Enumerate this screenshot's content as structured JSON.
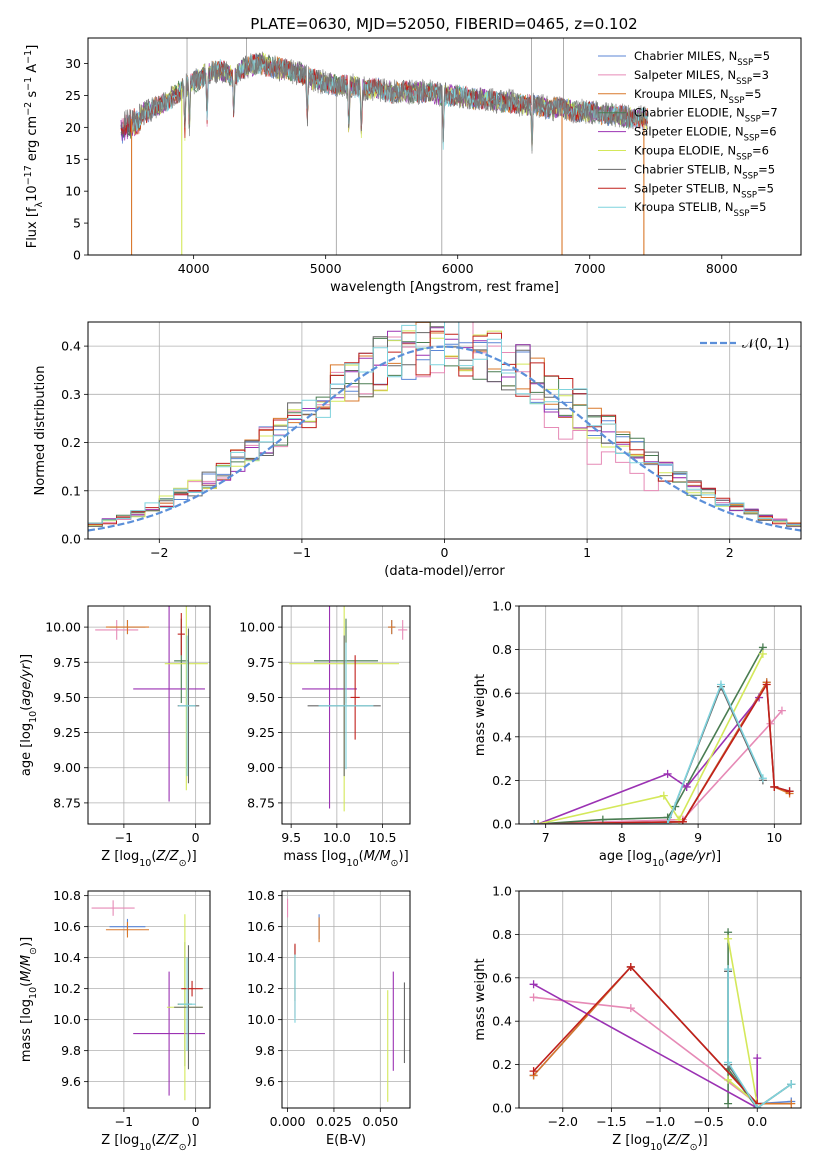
{
  "figure_title": "PLATE=0630, MJD=52050, FIBERID=0465, z=0.102",
  "colors": {
    "Chabrier MILES": "#5b86d6",
    "Salpeter MILES": "#e68ab6",
    "Kroupa MILES": "#d9782b",
    "Chabrier ELODIE": "#4a7d52",
    "Salpeter ELODIE": "#9b32b3",
    "Kroupa ELODIE": "#d4e85a",
    "Chabrier STELIB": "#666666",
    "Salpeter STELIB": "#c0201c",
    "Kroupa STELIB": "#7fd3dd"
  },
  "chart_data": [
    {
      "id": "spectrum",
      "type": "line",
      "title": "PLATE=0630, MJD=52050, FIBERID=0465, z=0.102",
      "xlabel": "wavelength [Angstrom, rest frame]",
      "ylabel": "Flux [f_λ 10^-17 erg cm^-2 s^-1 A^-1]",
      "xlim": [
        3200,
        8600
      ],
      "ylim": [
        0,
        34
      ],
      "xticks": [
        "4000",
        "5000",
        "6000",
        "7000",
        "8000"
      ],
      "yticks": [
        "0",
        "5",
        "10",
        "15",
        "20",
        "25",
        "30"
      ],
      "grid": false,
      "legend_position": "top-right",
      "legend": [
        "Chabrier MILES, N_SSP=5",
        "Salpeter MILES, N_SSP=3",
        "Kroupa MILES, N_SSP=5",
        "Chabrier ELODIE, N_SSP=7",
        "Salpeter ELODIE, N_SSP=6",
        "Kroupa ELODIE, N_SSP=6",
        "Chabrier STELIB, N_SSP=5",
        "Salpeter STELIB, N_SSP=5",
        "Kroupa STELIB, N_SSP=5"
      ],
      "observed_envelope": {
        "x": [
          3400,
          3500,
          3600,
          3700,
          3800,
          3900,
          4000,
          4100,
          4200,
          4300,
          4400,
          4500,
          4600,
          4700,
          4800,
          4900,
          5000,
          5100,
          5200,
          5300,
          5400,
          5500,
          5600,
          5700,
          5800,
          5900,
          6000,
          6100,
          6200,
          6300,
          6400,
          6500,
          6600,
          6700,
          6800,
          6900,
          7000,
          7100,
          7200,
          7300,
          7400
        ],
        "y": [
          20,
          21,
          22,
          23,
          24,
          26,
          27,
          28.5,
          29,
          28,
          29.5,
          30,
          29.5,
          29,
          28.5,
          27.5,
          27,
          26.5,
          26.5,
          26,
          26,
          25.5,
          25.5,
          25.5,
          25.5,
          25,
          25,
          24.5,
          24.5,
          24,
          24,
          23.5,
          23.5,
          23,
          23,
          22.5,
          22.5,
          22,
          22,
          21.5,
          21.5
        ]
      },
      "model_cut_edges": [
        {
          "model": "Kroupa MILES",
          "x": 3530
        },
        {
          "model": "Kroupa ELODIE",
          "x": 3910
        },
        {
          "model": "Kroupa MILES",
          "x": 6790
        },
        {
          "model": "Kroupa MILES",
          "x": 7410
        }
      ]
    },
    {
      "id": "residuals",
      "type": "histogram",
      "xlabel": "(data-model)/error",
      "ylabel": "Normed distribution",
      "xlim": [
        -2.5,
        2.5
      ],
      "ylim": [
        0,
        0.45
      ],
      "xticks": [
        "−2",
        "−1",
        "0",
        "1",
        "2"
      ],
      "yticks": [
        "0.0",
        "0.1",
        "0.2",
        "0.3",
        "0.4"
      ],
      "grid": true,
      "legend_position": "top-right",
      "legend": [
        "𝒩(0, 1)"
      ],
      "reference_curve": "standard normal density",
      "bin_width": 0.1
    },
    {
      "id": "age-vs-Z",
      "type": "errorbar",
      "xlabel": "Z [log10(Z/Z⊙)]",
      "ylabel": "age [log10(age/yr)]",
      "xlim": [
        -1.5,
        0.2
      ],
      "ylim": [
        8.6,
        10.15
      ],
      "xticks": [
        "−1",
        "0"
      ],
      "yticks": [
        "8.75",
        "9.00",
        "9.25",
        "9.50",
        "9.75",
        "10.00"
      ],
      "grid": true,
      "points": [
        {
          "model": "Chabrier MILES",
          "x": -0.95,
          "xerr": 0.25,
          "y": 10.0,
          "yerr": 0.05
        },
        {
          "model": "Salpeter MILES",
          "x": -1.1,
          "xerr": 0.3,
          "y": 9.98,
          "yerr": 0.07
        },
        {
          "model": "Kroupa MILES",
          "x": -0.95,
          "xerr": 0.3,
          "y": 10.0,
          "yerr": 0.05
        },
        {
          "model": "Chabrier ELODIE",
          "x": -0.2,
          "xerr": 0.1,
          "y": 9.76,
          "yerr": 0.3
        },
        {
          "model": "Salpeter ELODIE",
          "x": -0.37,
          "xerr": 0.5,
          "y": 9.56,
          "yerr": 0.8
        },
        {
          "model": "Kroupa ELODIE",
          "x": -0.13,
          "xerr": 0.3,
          "y": 9.74,
          "yerr": 0.9
        },
        {
          "model": "Chabrier STELIB",
          "x": -0.1,
          "xerr": 0.15,
          "y": 9.44,
          "yerr": 0.55
        },
        {
          "model": "Salpeter STELIB",
          "x": -0.2,
          "xerr": 0.05,
          "y": 9.95,
          "yerr": 0.15
        },
        {
          "model": "Kroupa STELIB",
          "x": -0.12,
          "xerr": 0.12,
          "y": 9.44,
          "yerr": 0.5
        }
      ]
    },
    {
      "id": "age-vs-mass",
      "type": "errorbar",
      "xlabel": "mass [log10(M/M⊙)]",
      "ylabel": "",
      "xlim": [
        9.4,
        10.8
      ],
      "ylim": [
        8.6,
        10.15
      ],
      "xticks": [
        "9.5",
        "10.0",
        "10.5"
      ],
      "yticks": [
        "8.75",
        "9.00",
        "9.25",
        "9.50",
        "9.75",
        "10.00"
      ],
      "grid": true,
      "points": [
        {
          "model": "Chabrier MILES",
          "x": 10.6,
          "xerr": 0.04,
          "y": 10.0,
          "yerr": 0.05
        },
        {
          "model": "Salpeter MILES",
          "x": 10.72,
          "xerr": 0.05,
          "y": 9.98,
          "yerr": 0.07
        },
        {
          "model": "Kroupa MILES",
          "x": 10.6,
          "xerr": 0.04,
          "y": 10.0,
          "yerr": 0.05
        },
        {
          "model": "Chabrier ELODIE",
          "x": 10.1,
          "xerr": 0.35,
          "y": 9.76,
          "yerr": 0.3
        },
        {
          "model": "Salpeter ELODIE",
          "x": 9.92,
          "xerr": 0.3,
          "y": 9.56,
          "yerr": 0.85
        },
        {
          "model": "Kroupa ELODIE",
          "x": 10.08,
          "xerr": 0.6,
          "y": 9.74,
          "yerr": 1.05
        },
        {
          "model": "Chabrier STELIB",
          "x": 10.08,
          "xerr": 0.4,
          "y": 9.44,
          "yerr": 0.5
        },
        {
          "model": "Salpeter STELIB",
          "x": 10.2,
          "xerr": 0.05,
          "y": 9.5,
          "yerr": 0.3
        },
        {
          "model": "Kroupa STELIB",
          "x": 10.1,
          "xerr": 0.3,
          "y": 9.44,
          "yerr": 0.45
        }
      ]
    },
    {
      "id": "weight-vs-age",
      "type": "line",
      "xlabel": "age [log10(age/yr)]",
      "ylabel": "mass weight",
      "xlim": [
        6.65,
        10.35
      ],
      "ylim": [
        0,
        1.0
      ],
      "xticks": [
        "7",
        "8",
        "9",
        "10"
      ],
      "yticks": [
        "0.0",
        "0.2",
        "0.4",
        "0.6",
        "0.8",
        "1.0"
      ],
      "grid": true,
      "series": [
        {
          "name": "Chabrier MILES",
          "x": [
            6.85,
            8.8,
            9.9,
            10.0,
            10.2
          ],
          "y": [
            0.0,
            0.01,
            0.65,
            0.17,
            0.15
          ]
        },
        {
          "name": "Salpeter MILES",
          "x": [
            6.85,
            8.8,
            9.95,
            10.1
          ],
          "y": [
            0.0,
            0.02,
            0.46,
            0.52
          ]
        },
        {
          "name": "Kroupa MILES",
          "x": [
            6.85,
            8.8,
            9.9,
            10.0,
            10.2
          ],
          "y": [
            0.0,
            0.01,
            0.65,
            0.17,
            0.14
          ]
        },
        {
          "name": "Chabrier ELODIE",
          "x": [
            6.9,
            7.75,
            8.6,
            8.7,
            9.85
          ],
          "y": [
            0.0,
            0.02,
            0.03,
            0.08,
            0.81
          ]
        },
        {
          "name": "Salpeter ELODIE",
          "x": [
            6.9,
            8.6,
            8.85,
            9.8
          ],
          "y": [
            0.0,
            0.23,
            0.17,
            0.58
          ]
        },
        {
          "name": "Kroupa ELODIE",
          "x": [
            6.9,
            8.55,
            8.75,
            9.85
          ],
          "y": [
            0.0,
            0.13,
            0.02,
            0.78
          ]
        },
        {
          "name": "Chabrier STELIB",
          "x": [
            6.85,
            8.6,
            9.3,
            9.85
          ],
          "y": [
            0.0,
            0.0,
            0.63,
            0.2
          ]
        },
        {
          "name": "Salpeter STELIB",
          "x": [
            6.85,
            8.8,
            9.9,
            10.0,
            10.2
          ],
          "y": [
            0.0,
            0.01,
            0.64,
            0.17,
            0.15
          ]
        },
        {
          "name": "Kroupa STELIB",
          "x": [
            6.85,
            8.6,
            9.3,
            9.85
          ],
          "y": [
            0.0,
            0.0,
            0.64,
            0.21
          ]
        }
      ]
    },
    {
      "id": "mass-vs-Z",
      "type": "errorbar",
      "xlabel": "Z [log10(Z/Z⊙)]",
      "ylabel": "mass [log10(M/M⊙)]",
      "xlim": [
        -1.5,
        0.2
      ],
      "ylim": [
        9.43,
        10.83
      ],
      "xticks": [
        "−1",
        "0"
      ],
      "yticks": [
        "9.6",
        "9.8",
        "10.0",
        "10.2",
        "10.4",
        "10.6",
        "10.8"
      ],
      "grid": true,
      "points": [
        {
          "model": "Chabrier MILES",
          "x": -0.95,
          "xerr": 0.25,
          "y": 10.6,
          "yerr": 0.05
        },
        {
          "model": "Salpeter MILES",
          "x": -1.15,
          "xerr": 0.3,
          "y": 10.72,
          "yerr": 0.05
        },
        {
          "model": "Kroupa MILES",
          "x": -0.95,
          "xerr": 0.3,
          "y": 10.58,
          "yerr": 0.05
        },
        {
          "model": "Chabrier ELODIE",
          "x": -0.15,
          "xerr": 0.1,
          "y": 10.1,
          "yerr": 0.4
        },
        {
          "model": "Salpeter ELODIE",
          "x": -0.37,
          "xerr": 0.5,
          "y": 9.91,
          "yerr": 0.4
        },
        {
          "model": "Kroupa ELODIE",
          "x": -0.15,
          "xerr": 0.25,
          "y": 10.08,
          "yerr": 0.6
        },
        {
          "model": "Chabrier STELIB",
          "x": -0.1,
          "xerr": 0.2,
          "y": 10.08,
          "yerr": 0.4
        },
        {
          "model": "Salpeter STELIB",
          "x": -0.05,
          "xerr": 0.15,
          "y": 10.2,
          "yerr": 0.05
        },
        {
          "model": "Kroupa STELIB",
          "x": -0.12,
          "xerr": 0.12,
          "y": 10.1,
          "yerr": 0.3
        }
      ]
    },
    {
      "id": "mass-vs-EBV",
      "type": "errorbar",
      "xlabel": "E(B-V)",
      "ylabel": "",
      "xlim": [
        -0.003,
        0.066
      ],
      "ylim": [
        9.43,
        10.83
      ],
      "xticks": [
        "0.000",
        "0.025",
        "0.050"
      ],
      "yticks": [
        "9.6",
        "9.8",
        "10.0",
        "10.2",
        "10.4",
        "10.6",
        "10.8"
      ],
      "grid": true,
      "points": [
        {
          "model": "Chabrier MILES",
          "x": 0.017,
          "xerr": 0,
          "y": 10.6,
          "yerr": 0.08
        },
        {
          "model": "Salpeter MILES",
          "x": 0.0,
          "xerr": 0,
          "y": 10.72,
          "yerr": 0.06
        },
        {
          "model": "Kroupa MILES",
          "x": 0.017,
          "xerr": 0,
          "y": 10.58,
          "yerr": 0.08
        },
        {
          "model": "Chabrier ELODIE",
          "x": 0.004,
          "xerr": 0,
          "y": 10.3,
          "yerr": 0.18
        },
        {
          "model": "Salpeter ELODIE",
          "x": 0.057,
          "xerr": 0,
          "y": 9.99,
          "yerr": 0.32
        },
        {
          "model": "Kroupa ELODIE",
          "x": 0.054,
          "xerr": 0,
          "y": 9.83,
          "yerr": 0.36
        },
        {
          "model": "Chabrier STELIB",
          "x": 0.063,
          "xerr": 0,
          "y": 9.98,
          "yerr": 0.26
        },
        {
          "model": "Salpeter STELIB",
          "x": 0.004,
          "xerr": 0,
          "y": 10.25,
          "yerr": 0.24
        },
        {
          "model": "Kroupa STELIB",
          "x": 0.004,
          "xerr": 0,
          "y": 10.2,
          "yerr": 0.22
        }
      ]
    },
    {
      "id": "weight-vs-Z",
      "type": "line",
      "xlabel": "Z [log10(Z/Z⊙)]",
      "ylabel": "mass weight",
      "xlim": [
        -2.45,
        0.45
      ],
      "ylim": [
        0,
        1.0
      ],
      "xticks": [
        "−2.0",
        "−1.5",
        "−1.0",
        "−0.5",
        "0.0"
      ],
      "yticks": [
        "0.0",
        "0.2",
        "0.4",
        "0.6",
        "0.8",
        "1.0"
      ],
      "grid": true,
      "series": [
        {
          "name": "Chabrier MILES",
          "x": [
            -2.3,
            -1.3,
            0.0,
            0.35
          ],
          "y": [
            0.15,
            0.65,
            0.02,
            0.03
          ]
        },
        {
          "name": "Salpeter MILES",
          "x": [
            -2.3,
            -1.3,
            0.0
          ],
          "y": [
            0.51,
            0.46,
            0.02
          ]
        },
        {
          "name": "Kroupa MILES",
          "x": [
            -2.3,
            -1.3,
            0.0,
            0.35
          ],
          "y": [
            0.15,
            0.65,
            0.02,
            0.02
          ]
        },
        {
          "name": "Chabrier ELODIE",
          "x": [
            -0.3,
            -0.3,
            -0.3,
            0.0,
            0.35
          ],
          "y": [
            0.81,
            0.02,
            0.18,
            0.0,
            0.11
          ]
        },
        {
          "name": "Salpeter ELODIE",
          "x": [
            -2.3,
            0.0,
            0.0
          ],
          "y": [
            0.57,
            0.0,
            0.23
          ]
        },
        {
          "name": "Kroupa ELODIE",
          "x": [
            -0.3,
            0.0,
            -0.3
          ],
          "y": [
            0.78,
            0.02,
            0.13
          ]
        },
        {
          "name": "Chabrier STELIB",
          "x": [
            -0.3,
            -0.3,
            0.0,
            0.35
          ],
          "y": [
            0.63,
            0.2,
            0.0,
            0.11
          ]
        },
        {
          "name": "Salpeter STELIB",
          "x": [
            -2.3,
            -1.3,
            0.0
          ],
          "y": [
            0.17,
            0.65,
            0.02
          ]
        },
        {
          "name": "Kroupa STELIB",
          "x": [
            -0.3,
            -0.3,
            0.0,
            0.35
          ],
          "y": [
            0.64,
            0.21,
            0.0,
            0.11
          ]
        }
      ]
    }
  ]
}
